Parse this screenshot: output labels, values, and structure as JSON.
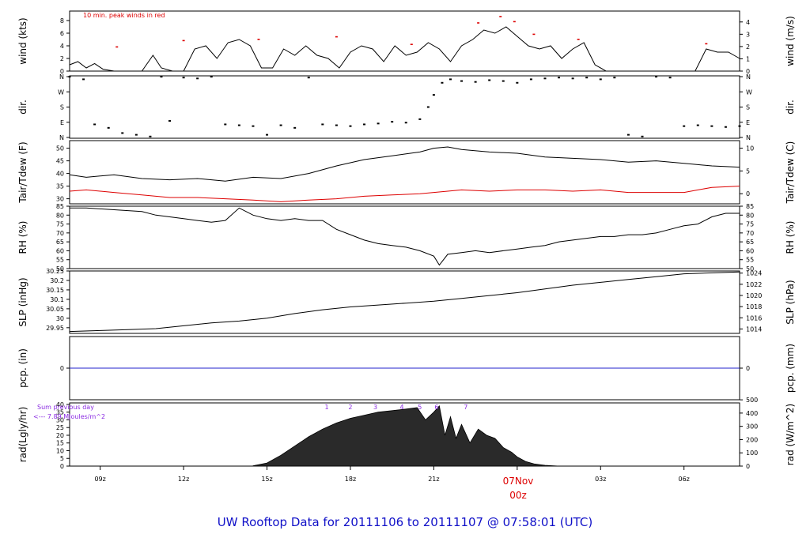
{
  "title": "UW Rooftop Data for 20111106  to  20111107 @ 07:58:01  (UTC)",
  "colors": {
    "tdew": "#dd0000",
    "pcp": "#2020cc",
    "title": "#1010c8",
    "date": "#dd0000",
    "note": "#8a2be2"
  },
  "date_label": {
    "day": "07Nov",
    "hour": "00z"
  },
  "chart_data": [
    {
      "type": "line",
      "id": "wind",
      "ylabel": "wind (kts)",
      "ylabel_right": "wind (m/s)",
      "ylim": [
        0,
        9.5
      ],
      "yticks": [
        0,
        2,
        4,
        6,
        8
      ],
      "yticks_right": [
        0,
        1,
        2,
        3,
        4
      ],
      "annotation": "10 min. peak winds in red",
      "x": [
        7.9,
        8.2,
        8.5,
        8.8,
        9.1,
        9.5,
        10.0,
        10.5,
        10.9,
        11.2,
        11.6,
        12.0,
        12.4,
        12.8,
        13.2,
        13.6,
        14.0,
        14.4,
        14.8,
        15.2,
        15.6,
        16.0,
        16.4,
        16.8,
        17.2,
        17.6,
        18.0,
        18.4,
        18.8,
        19.2,
        19.6,
        20.0,
        20.4,
        20.8,
        21.2,
        21.6,
        22.0,
        22.4,
        22.8,
        23.2,
        23.6,
        24.0,
        24.4,
        24.8,
        25.2,
        25.6,
        26.0,
        26.4,
        26.8,
        27.2,
        27.6,
        28.0,
        28.4,
        28.8,
        29.2,
        29.6,
        30.0,
        30.4,
        30.8,
        31.2,
        31.6,
        32.0
      ],
      "y": [
        1.0,
        1.5,
        0.5,
        1.2,
        0.3,
        0.0,
        0.0,
        0.0,
        2.5,
        0.5,
        0.0,
        0.0,
        3.5,
        4.0,
        2.0,
        4.5,
        5.0,
        4.0,
        0.5,
        0.5,
        3.5,
        2.5,
        4.0,
        2.5,
        2.0,
        0.5,
        3.0,
        4.0,
        3.5,
        1.5,
        4.0,
        2.5,
        3.0,
        4.5,
        3.5,
        1.5,
        4.0,
        5.0,
        6.5,
        6.0,
        7.0,
        5.5,
        4.0,
        3.5,
        4.0,
        2.0,
        3.5,
        4.5,
        1.0,
        0.0,
        0.0,
        0.0,
        0.0,
        0.0,
        0.0,
        0.0,
        0.0,
        0.0,
        3.5,
        3.0,
        3.0,
        2.0
      ],
      "peaks": [
        {
          "x": 9.6,
          "y": 3.8
        },
        {
          "x": 12.0,
          "y": 4.8
        },
        {
          "x": 14.7,
          "y": 5.0
        },
        {
          "x": 17.5,
          "y": 5.4
        },
        {
          "x": 20.2,
          "y": 4.2
        },
        {
          "x": 22.6,
          "y": 7.6
        },
        {
          "x": 23.4,
          "y": 8.6
        },
        {
          "x": 23.9,
          "y": 7.8
        },
        {
          "x": 24.6,
          "y": 5.8
        },
        {
          "x": 26.2,
          "y": 5.0
        },
        {
          "x": 30.8,
          "y": 4.3
        }
      ]
    },
    {
      "type": "scatter",
      "id": "dir",
      "ylabel": "dir.",
      "ylabel_right": "dir.",
      "ylim": [
        0,
        360
      ],
      "yticks": [
        "N",
        "E",
        "S",
        "W",
        "N"
      ],
      "x": [
        7.9,
        8.4,
        8.8,
        9.3,
        9.8,
        10.3,
        10.8,
        11.2,
        11.5,
        12.0,
        12.5,
        13.0,
        13.5,
        14.0,
        14.5,
        15.0,
        15.5,
        16.0,
        16.5,
        17.0,
        17.5,
        18.0,
        18.5,
        19.0,
        19.5,
        20.0,
        20.5,
        20.8,
        21.0,
        21.3,
        21.6,
        22.0,
        22.5,
        23.0,
        23.5,
        24.0,
        24.5,
        25.0,
        25.5,
        26.0,
        26.5,
        27.0,
        27.5,
        28.0,
        28.5,
        29.0,
        29.5,
        30.0,
        30.5,
        31.0,
        31.5,
        32.0
      ],
      "y": [
        355,
        340,
        80,
        60,
        30,
        20,
        10,
        355,
        100,
        350,
        345,
        355,
        80,
        75,
        70,
        20,
        75,
        60,
        350,
        80,
        75,
        70,
        80,
        85,
        95,
        90,
        110,
        180,
        250,
        320,
        340,
        330,
        325,
        335,
        330,
        320,
        340,
        345,
        350,
        345,
        350,
        340,
        350,
        20,
        10,
        355,
        350,
        70,
        75,
        70,
        65,
        70
      ]
    },
    {
      "type": "line",
      "id": "temp",
      "ylabel": "Tair/Tdew (F)",
      "ylabel_right": "Tair/Tdew (C)",
      "ylim": [
        28,
        53
      ],
      "yticks": [
        30,
        35,
        40,
        45,
        50
      ],
      "yticks_right": [
        0,
        5,
        10
      ],
      "series": [
        {
          "name": "Tair",
          "x": [
            7.9,
            8.5,
            9.5,
            10.5,
            11.5,
            12.5,
            13.5,
            14.5,
            15.5,
            16.5,
            17.5,
            18.5,
            19.5,
            20.5,
            21.0,
            21.5,
            22.0,
            23.0,
            24.0,
            25.0,
            26.0,
            27.0,
            28.0,
            29.0,
            30.0,
            31.0,
            32.0
          ],
          "y": [
            39.5,
            38.5,
            39.5,
            38.0,
            37.5,
            38.0,
            37.0,
            38.5,
            38.0,
            40.0,
            43.0,
            45.5,
            47.0,
            48.5,
            50.0,
            50.5,
            49.5,
            48.5,
            48.0,
            46.5,
            46.0,
            45.5,
            44.5,
            45.0,
            44.0,
            43.0,
            42.5
          ]
        },
        {
          "name": "Tdew",
          "x": [
            7.9,
            8.5,
            9.5,
            10.5,
            11.5,
            12.5,
            13.5,
            14.5,
            15.5,
            16.5,
            17.5,
            18.5,
            19.5,
            20.5,
            21.0,
            21.5,
            22.0,
            23.0,
            24.0,
            25.0,
            26.0,
            27.0,
            28.0,
            29.0,
            30.0,
            30.5,
            31.0,
            32.0
          ],
          "y": [
            33.0,
            33.5,
            32.5,
            31.5,
            30.5,
            30.5,
            30.0,
            29.5,
            28.8,
            29.5,
            30.0,
            31.0,
            31.5,
            32.0,
            32.5,
            33.0,
            33.5,
            33.0,
            33.5,
            33.5,
            33.0,
            33.5,
            32.5,
            32.5,
            32.5,
            33.5,
            34.5,
            35.0
          ]
        }
      ]
    },
    {
      "type": "line",
      "id": "rh",
      "ylabel": "RH (%)",
      "ylabel_right": "RH (%)",
      "ylim": [
        50,
        85
      ],
      "yticks": [
        50,
        55,
        60,
        65,
        70,
        75,
        80,
        85
      ],
      "x": [
        7.9,
        8.5,
        9.5,
        10.5,
        11.0,
        11.5,
        12.0,
        12.5,
        13.0,
        13.5,
        14.0,
        14.5,
        15.0,
        15.5,
        16.0,
        16.5,
        17.0,
        17.5,
        18.0,
        18.5,
        19.0,
        19.5,
        20.0,
        20.5,
        21.0,
        21.2,
        21.5,
        22.0,
        22.5,
        23.0,
        23.5,
        24.0,
        24.5,
        25.0,
        25.5,
        26.0,
        26.5,
        27.0,
        27.5,
        28.0,
        28.5,
        29.0,
        29.5,
        30.0,
        30.5,
        31.0,
        31.5,
        32.0
      ],
      "y": [
        84,
        84,
        83,
        82,
        80,
        79,
        78,
        77,
        76,
        77,
        84,
        80,
        78,
        77,
        78,
        77,
        77,
        72,
        69,
        66,
        64,
        63,
        62,
        60,
        57,
        52,
        58,
        59,
        60,
        59,
        60,
        61,
        62,
        63,
        65,
        66,
        67,
        68,
        68,
        69,
        69,
        70,
        72,
        74,
        75,
        79,
        81,
        81
      ]
    },
    {
      "type": "line",
      "id": "slp",
      "ylabel": "SLP (inHg)",
      "ylabel_right": "SLP (hPa)",
      "ylim": [
        29.92,
        30.25
      ],
      "yticks": [
        29.95,
        30.0,
        30.05,
        30.1,
        30.15,
        30.2,
        30.25
      ],
      "yticks_right": [
        1014,
        1016,
        1018,
        1020,
        1022,
        1024
      ],
      "x": [
        7.9,
        9.0,
        10.0,
        11.0,
        12.0,
        13.0,
        14.0,
        15.0,
        16.0,
        17.0,
        18.0,
        19.0,
        20.0,
        21.0,
        22.0,
        23.0,
        24.0,
        25.0,
        26.0,
        27.0,
        28.0,
        29.0,
        30.0,
        31.0,
        32.0
      ],
      "y": [
        29.93,
        29.935,
        29.94,
        29.945,
        29.96,
        29.975,
        29.985,
        30.0,
        30.025,
        30.045,
        30.06,
        30.07,
        30.08,
        30.09,
        30.105,
        30.12,
        30.135,
        30.155,
        30.175,
        30.19,
        30.205,
        30.22,
        30.235,
        30.24,
        30.245
      ]
    },
    {
      "type": "line",
      "id": "pcp",
      "ylabel": "pcp. (in)",
      "ylabel_right": "pcp. (mm)",
      "ylim": [
        -1,
        1
      ],
      "yticks": [
        0
      ],
      "yticks_right": [
        0
      ],
      "x": [
        7.9,
        32.0
      ],
      "y": [
        0,
        0
      ]
    },
    {
      "type": "area",
      "id": "rad",
      "ylabel": "rad(Lgly/hr)",
      "ylabel_right": "rad (W/m^2)",
      "ylim": [
        0,
        41
      ],
      "yticks": [
        0,
        5,
        10,
        15,
        20,
        25,
        30,
        35,
        40
      ],
      "yticks_right": [
        0,
        100,
        200,
        300,
        400,
        500
      ],
      "note": "Sum previous day",
      "note2": "<--- 7.89 MJoules/m^2",
      "hour_marks": [
        "1",
        "2",
        "3",
        "4",
        "5",
        "6",
        "7"
      ],
      "hour_marks_x": [
        17.15,
        18.0,
        18.9,
        19.85,
        20.5,
        21.1,
        22.15
      ],
      "x": [
        14.5,
        15.0,
        15.5,
        16.0,
        16.5,
        17.0,
        17.5,
        18.0,
        18.5,
        19.0,
        19.5,
        20.0,
        20.4,
        20.7,
        21.0,
        21.2,
        21.4,
        21.6,
        21.8,
        22.0,
        22.3,
        22.6,
        22.9,
        23.2,
        23.5,
        23.8,
        24.0,
        24.3,
        24.6,
        25.0,
        25.5
      ],
      "y": [
        0.2,
        2,
        7,
        13,
        19,
        24,
        28,
        31,
        33,
        35,
        36,
        37,
        38,
        30,
        35,
        39,
        20,
        32,
        18,
        27,
        15,
        24,
        20,
        18,
        12,
        9,
        6,
        3,
        1.5,
        0.5,
        0.0
      ]
    }
  ],
  "x_axis": {
    "ticks": [
      "09z",
      "12z",
      "15z",
      "18z",
      "21z",
      "00z",
      "03z",
      "06z"
    ],
    "ticks_x": [
      9,
      12,
      15,
      18,
      21,
      24,
      27,
      30
    ],
    "xlim": [
      7.9,
      32.0
    ]
  }
}
